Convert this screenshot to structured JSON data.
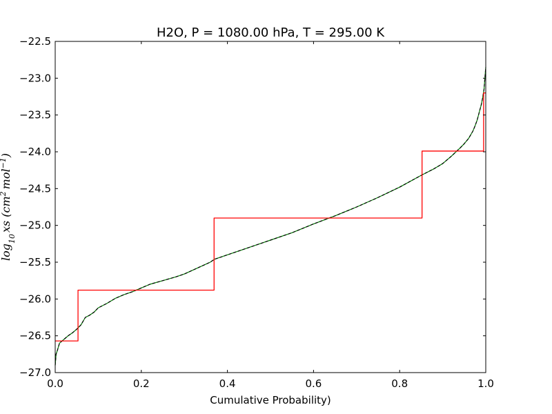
{
  "chart_data": {
    "type": "line",
    "title": "H2O, P = 1080.00 hPa, T = 295.00 K",
    "xlabel": "Cumulative Probability)",
    "ylabel": "log10 xs (cm2 mol-1)",
    "ylabel_parts": {
      "prefix": "log",
      "sub": "10",
      "mid": "xs (cm",
      "sup1": "2",
      "mid2": "mol",
      "sup2": "−1",
      "suffix": ")"
    },
    "xlim": [
      0.0,
      1.0
    ],
    "ylim": [
      -27.0,
      -22.5
    ],
    "x_ticks": [
      0.0,
      0.2,
      0.4,
      0.6,
      0.8,
      1.0
    ],
    "x_tick_labels": [
      "0.0",
      "0.2",
      "0.4",
      "0.6",
      "0.8",
      "1.0"
    ],
    "y_ticks": [
      -27.0,
      -26.5,
      -26.0,
      -25.5,
      -25.0,
      -24.5,
      -24.0,
      -23.5,
      -23.0,
      -22.5
    ],
    "y_tick_labels": [
      "−27.0",
      "−26.5",
      "−26.0",
      "−25.5",
      "−25.0",
      "−24.5",
      "−24.0",
      "−23.5",
      "−23.0",
      "−22.5"
    ],
    "grid": false,
    "series": [
      {
        "color": "#008000",
        "style": "solid",
        "x": [
          0.0,
          0.002,
          0.005,
          0.01,
          0.02,
          0.03,
          0.04,
          0.05,
          0.06,
          0.07,
          0.08,
          0.09,
          0.1,
          0.12,
          0.14,
          0.16,
          0.18,
          0.2,
          0.22,
          0.25,
          0.28,
          0.3,
          0.33,
          0.36,
          0.37,
          0.4,
          0.45,
          0.5,
          0.55,
          0.6,
          0.65,
          0.7,
          0.75,
          0.8,
          0.85,
          0.88,
          0.9,
          0.92,
          0.94,
          0.95,
          0.96,
          0.97,
          0.975,
          0.98,
          0.985,
          0.99,
          0.993,
          0.996,
          0.998,
          1.0
        ],
        "y": [
          -26.9,
          -26.75,
          -26.7,
          -26.6,
          -26.55,
          -26.5,
          -26.46,
          -26.41,
          -26.35,
          -26.25,
          -26.22,
          -26.18,
          -26.12,
          -26.06,
          -25.99,
          -25.94,
          -25.9,
          -25.85,
          -25.8,
          -25.75,
          -25.7,
          -25.66,
          -25.58,
          -25.5,
          -25.46,
          -25.4,
          -25.3,
          -25.2,
          -25.1,
          -24.98,
          -24.87,
          -24.75,
          -24.62,
          -24.48,
          -24.32,
          -24.23,
          -24.16,
          -24.06,
          -23.95,
          -23.89,
          -23.82,
          -23.72,
          -23.65,
          -23.57,
          -23.46,
          -23.35,
          -23.26,
          -23.15,
          -23.0,
          -22.85
        ]
      },
      {
        "color": "#000000",
        "style": "dashed",
        "x": [
          0.0,
          0.002,
          0.005,
          0.01,
          0.02,
          0.03,
          0.04,
          0.05,
          0.06,
          0.07,
          0.08,
          0.09,
          0.1,
          0.12,
          0.14,
          0.16,
          0.18,
          0.2,
          0.22,
          0.25,
          0.28,
          0.3,
          0.33,
          0.36,
          0.37,
          0.4,
          0.45,
          0.5,
          0.55,
          0.6,
          0.65,
          0.7,
          0.75,
          0.8,
          0.85,
          0.88,
          0.9,
          0.92,
          0.94,
          0.95,
          0.96,
          0.97,
          0.975,
          0.98,
          0.985,
          0.99,
          0.993,
          0.996,
          0.998,
          1.0
        ],
        "y": [
          -26.9,
          -26.75,
          -26.7,
          -26.6,
          -26.55,
          -26.5,
          -26.46,
          -26.41,
          -26.35,
          -26.25,
          -26.22,
          -26.18,
          -26.12,
          -26.06,
          -25.99,
          -25.94,
          -25.9,
          -25.85,
          -25.8,
          -25.75,
          -25.7,
          -25.66,
          -25.58,
          -25.5,
          -25.46,
          -25.4,
          -25.3,
          -25.2,
          -25.1,
          -24.98,
          -24.87,
          -24.75,
          -24.62,
          -24.48,
          -24.32,
          -24.23,
          -24.16,
          -24.06,
          -23.95,
          -23.89,
          -23.82,
          -23.72,
          -23.65,
          -23.57,
          -23.46,
          -23.35,
          -23.26,
          -23.15,
          -23.0,
          -22.85
        ]
      },
      {
        "color": "#ff0000",
        "style": "step",
        "x": [
          0.0,
          0.053,
          0.053,
          0.369,
          0.369,
          0.852,
          0.852,
          0.995,
          0.995,
          1.0
        ],
        "y": [
          -26.57,
          -26.57,
          -25.88,
          -25.88,
          -24.9,
          -24.9,
          -23.99,
          -23.99,
          -23.2,
          -23.2
        ]
      }
    ]
  }
}
